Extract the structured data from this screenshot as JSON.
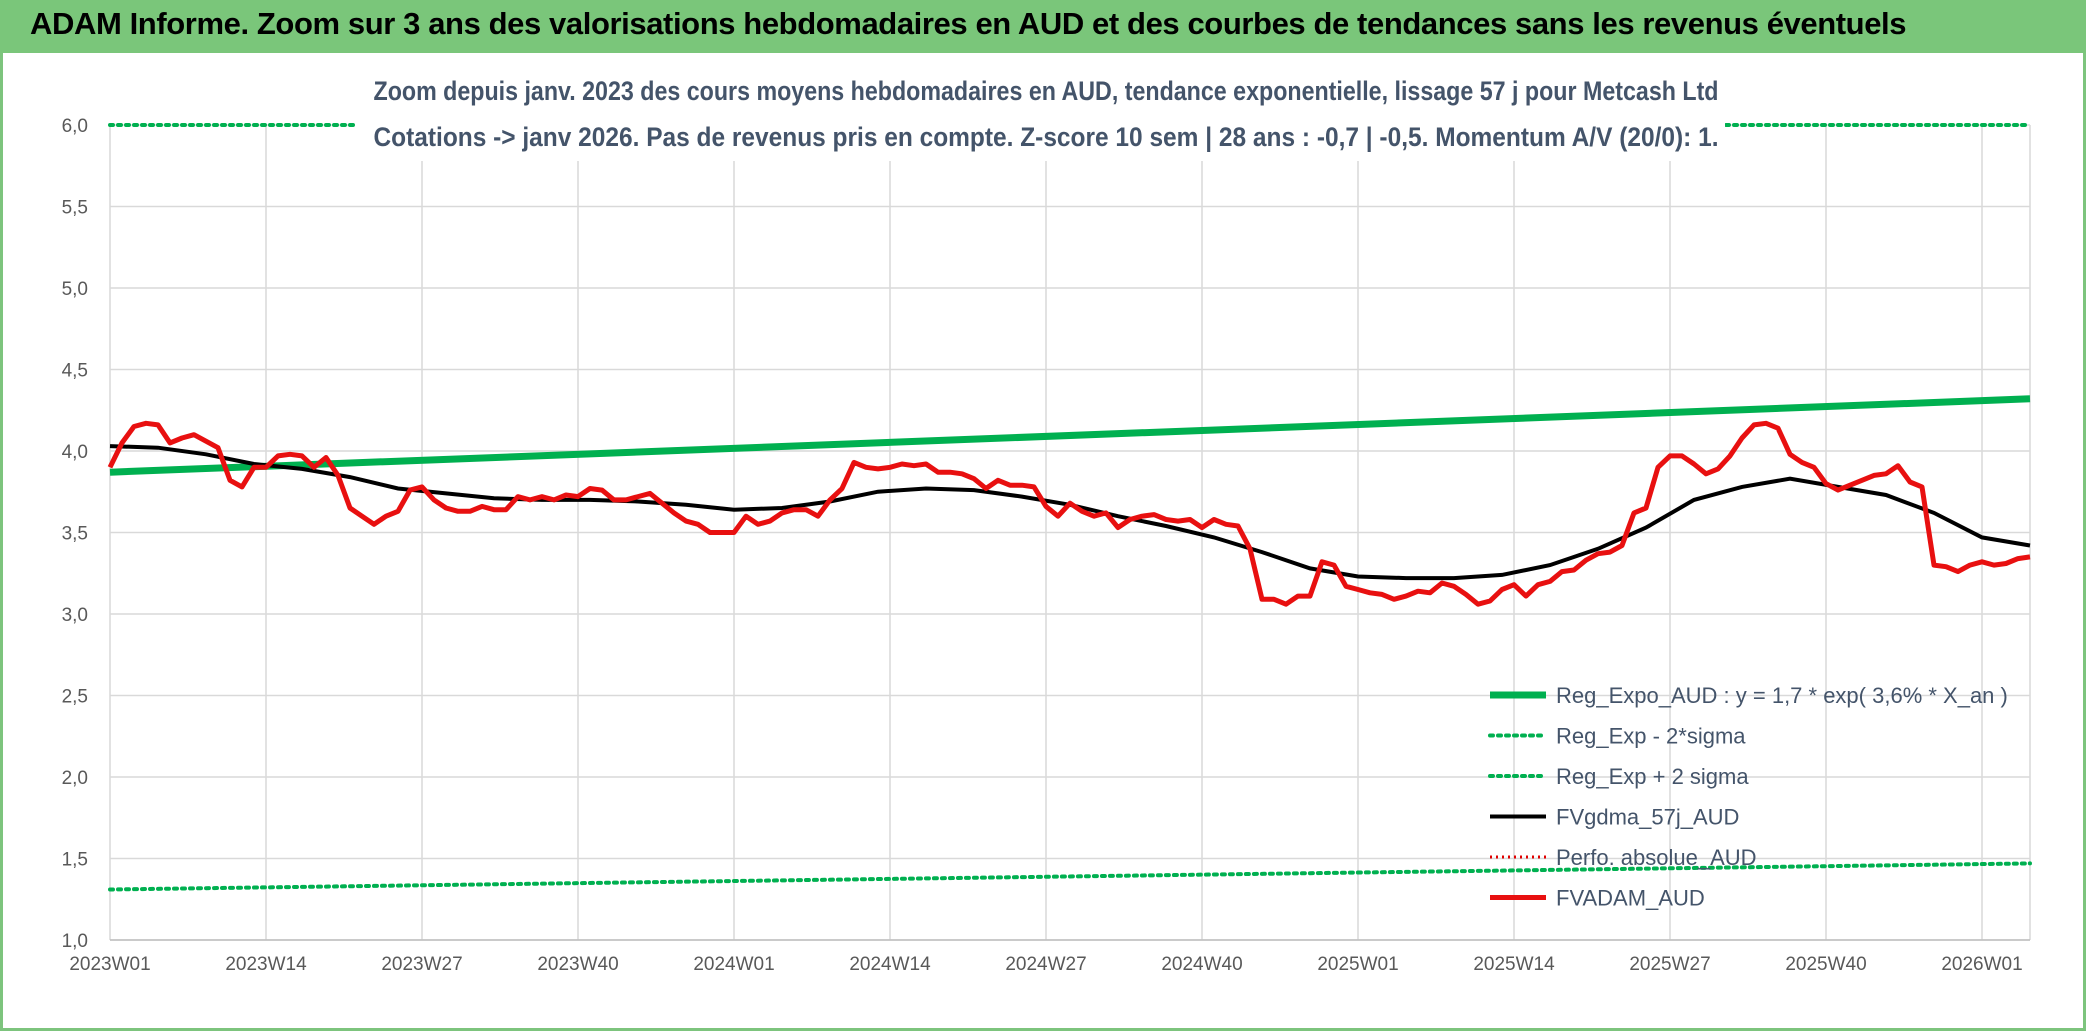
{
  "header": {
    "title": "ADAM Informe. Zoom sur 3 ans des valorisations hebdomadaires en AUD et des courbes de tendances sans les revenus éventuels"
  },
  "colors": {
    "banner": "#7ac67a",
    "reg_expo": "#00b050",
    "sigma": "#00b050",
    "gdma": "#000000",
    "perfo": "#e00000",
    "fvadam": "#e81010",
    "title_text": "#44546a"
  },
  "chart_data": {
    "type": "line",
    "title_lines": [
      "Zoom depuis janv. 2023 des cours moyens hebdomadaires en AUD, tendance exponentielle, lissage 57 j pour Metcash Ltd",
      "Cotations -> janv 2026. Pas de revenus pris en compte. Z-score 10 sem | 28 ans : -0,7 | -0,5. Momentum A/V (20/0): 1."
    ],
    "ylim": [
      1.0,
      6.0
    ],
    "y_ticks": [
      "1,0",
      "1,5",
      "2,0",
      "2,5",
      "3,0",
      "3,5",
      "4,0",
      "4,5",
      "5,0",
      "5,5",
      "6,0"
    ],
    "x_ticks": [
      "2023W01",
      "2023W14",
      "2023W27",
      "2023W40",
      "2024W01",
      "2024W14",
      "2024W27",
      "2024W40",
      "2025W01",
      "2025W14",
      "2025W27",
      "2025W40",
      "2026W01"
    ],
    "x_tick_weeks": [
      0,
      13,
      26,
      39,
      52,
      65,
      78,
      91,
      104,
      117,
      130,
      143,
      156
    ],
    "x_range": [
      0,
      160
    ],
    "grid": true,
    "legend_position": "bottom-right",
    "series": [
      {
        "name": "Reg_Expo_AUD : y = 1,7 * exp( 3,6% *  X_an )",
        "style": "thick",
        "x": [
          0,
          160
        ],
        "y": [
          3.87,
          4.32
        ]
      },
      {
        "name": "Reg_Exp - 2*sigma",
        "style": "dotted",
        "x": [
          0,
          160
        ],
        "y": [
          1.31,
          1.47
        ]
      },
      {
        "name": "Reg_Exp + 2 sigma",
        "style": "dotted",
        "x": [
          0,
          160
        ],
        "y": [
          6.0,
          6.0
        ]
      },
      {
        "name": "FVgdma_57j_AUD",
        "style": "solid",
        "x": [
          0,
          4,
          8,
          12,
          16,
          20,
          24,
          28,
          32,
          36,
          40,
          44,
          48,
          52,
          56,
          60,
          64,
          68,
          72,
          76,
          80,
          84,
          88,
          92,
          96,
          100,
          104,
          108,
          112,
          116,
          120,
          124,
          128,
          132,
          136,
          140,
          144,
          148,
          152,
          156,
          160
        ],
        "y": [
          4.03,
          4.02,
          3.98,
          3.92,
          3.89,
          3.84,
          3.77,
          3.74,
          3.71,
          3.7,
          3.7,
          3.69,
          3.67,
          3.64,
          3.65,
          3.69,
          3.75,
          3.77,
          3.76,
          3.72,
          3.67,
          3.6,
          3.54,
          3.47,
          3.38,
          3.28,
          3.23,
          3.22,
          3.22,
          3.24,
          3.3,
          3.4,
          3.53,
          3.7,
          3.78,
          3.83,
          3.78,
          3.73,
          3.62,
          3.47,
          3.42
        ]
      },
      {
        "name": "Perfo. absolue_AUD",
        "style": "dotted-red",
        "x": [],
        "y": []
      },
      {
        "name": "FVADAM_AUD",
        "style": "thick-red",
        "x": [
          0,
          1,
          2,
          3,
          4,
          5,
          6,
          7,
          8,
          9,
          10,
          11,
          12,
          13,
          14,
          15,
          16,
          17,
          18,
          19,
          20,
          21,
          22,
          23,
          24,
          25,
          26,
          27,
          28,
          29,
          30,
          31,
          32,
          33,
          34,
          35,
          36,
          37,
          38,
          39,
          40,
          41,
          42,
          43,
          44,
          45,
          46,
          47,
          48,
          49,
          50,
          51,
          52,
          53,
          54,
          55,
          56,
          57,
          58,
          59,
          60,
          61,
          62,
          63,
          64,
          65,
          66,
          67,
          68,
          69,
          70,
          71,
          72,
          73,
          74,
          75,
          76,
          77,
          78,
          79,
          80,
          81,
          82,
          83,
          84,
          85,
          86,
          87,
          88,
          89,
          90,
          91,
          92,
          93,
          94,
          95,
          96,
          97,
          98,
          99,
          100,
          101,
          102,
          103,
          104,
          105,
          106,
          107,
          108,
          109,
          110,
          111,
          112,
          113,
          114,
          115,
          116,
          117,
          118,
          119,
          120,
          121,
          122,
          123,
          124,
          125,
          126,
          127,
          128,
          129,
          130,
          131,
          132,
          133,
          134,
          135,
          136,
          137,
          138,
          139,
          140,
          141,
          142,
          143,
          144,
          145,
          146,
          147,
          148,
          149,
          150,
          151,
          152,
          153,
          154,
          155,
          156,
          157,
          158,
          159,
          160
        ],
        "y": [
          3.9,
          4.05,
          4.15,
          4.17,
          4.16,
          4.05,
          4.08,
          4.1,
          4.06,
          4.02,
          3.82,
          3.78,
          3.9,
          3.9,
          3.97,
          3.98,
          3.97,
          3.9,
          3.96,
          3.85,
          3.65,
          3.6,
          3.55,
          3.6,
          3.63,
          3.76,
          3.78,
          3.7,
          3.65,
          3.63,
          3.63,
          3.66,
          3.64,
          3.64,
          3.72,
          3.7,
          3.72,
          3.7,
          3.73,
          3.72,
          3.77,
          3.76,
          3.7,
          3.7,
          3.72,
          3.74,
          3.68,
          3.62,
          3.57,
          3.55,
          3.5,
          3.5,
          3.5,
          3.6,
          3.55,
          3.57,
          3.62,
          3.64,
          3.64,
          3.6,
          3.7,
          3.77,
          3.93,
          3.9,
          3.89,
          3.9,
          3.92,
          3.91,
          3.92,
          3.87,
          3.87,
          3.86,
          3.83,
          3.77,
          3.82,
          3.79,
          3.79,
          3.78,
          3.66,
          3.6,
          3.68,
          3.63,
          3.6,
          3.62,
          3.53,
          3.58,
          3.6,
          3.61,
          3.58,
          3.57,
          3.58,
          3.53,
          3.58,
          3.55,
          3.54,
          3.4,
          3.09,
          3.09,
          3.06,
          3.11,
          3.11,
          3.32,
          3.3,
          3.17,
          3.15,
          3.13,
          3.12,
          3.09,
          3.11,
          3.14,
          3.13,
          3.19,
          3.17,
          3.12,
          3.06,
          3.08,
          3.15,
          3.18,
          3.11,
          3.18,
          3.2,
          3.26,
          3.27,
          3.33,
          3.37,
          3.38,
          3.42,
          3.62,
          3.65,
          3.9,
          3.97,
          3.97,
          3.92,
          3.86,
          3.89,
          3.97,
          4.08,
          4.16,
          4.17,
          4.14,
          3.98,
          3.93,
          3.9,
          3.8,
          3.76,
          3.79,
          3.82,
          3.85,
          3.86,
          3.91,
          3.81,
          3.78,
          3.3,
          3.29,
          3.26,
          3.3,
          3.32,
          3.3,
          3.31,
          3.34,
          3.35
        ]
      }
    ]
  }
}
